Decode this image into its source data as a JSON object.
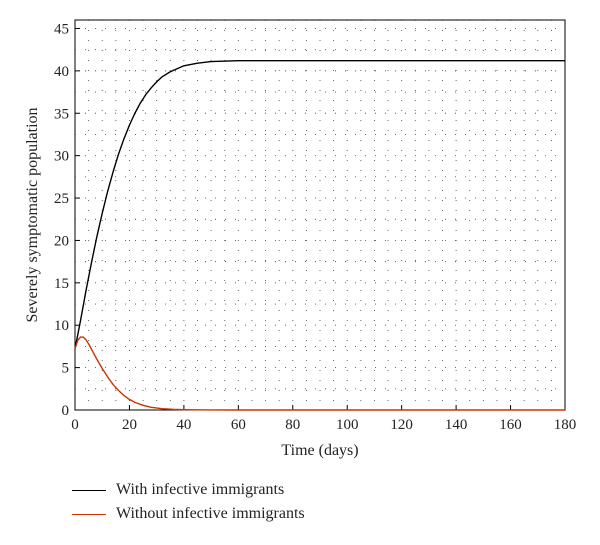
{
  "chart_data": {
    "type": "line",
    "title": "",
    "xlabel": "Time (days)",
    "ylabel": "Severely symptomatic population",
    "xlim": [
      0,
      180
    ],
    "ylim": [
      0,
      46
    ],
    "xticks": [
      0,
      20,
      40,
      60,
      80,
      100,
      120,
      140,
      160,
      180
    ],
    "yticks": [
      0,
      5,
      10,
      15,
      20,
      25,
      30,
      35,
      40,
      45
    ],
    "grid": "dotted",
    "legend_position": "bottom-left, below plot",
    "series": [
      {
        "name": "With infective immigrants",
        "color": "#000000",
        "x": [
          0,
          2,
          4,
          6,
          8,
          10,
          12,
          14,
          16,
          18,
          20,
          22,
          24,
          26,
          28,
          30,
          32,
          35,
          40,
          45,
          50,
          60,
          80,
          100,
          120,
          140,
          160,
          180
        ],
        "y": [
          7.2,
          10.5,
          14.0,
          17.3,
          20.4,
          23.2,
          25.8,
          28.1,
          30.2,
          32.0,
          33.6,
          35.0,
          36.2,
          37.2,
          38.0,
          38.7,
          39.3,
          39.9,
          40.6,
          40.9,
          41.1,
          41.2,
          41.2,
          41.2,
          41.2,
          41.2,
          41.2,
          41.2
        ]
      },
      {
        "name": "Without infective immigrants",
        "color": "#cc3300",
        "x": [
          0,
          1,
          2,
          3,
          4,
          5,
          6,
          8,
          10,
          12,
          14,
          16,
          18,
          20,
          22,
          25,
          28,
          32,
          36,
          40,
          45,
          50,
          60,
          80,
          100,
          120,
          140,
          160,
          180
        ],
        "y": [
          7.2,
          8.2,
          8.6,
          8.6,
          8.3,
          7.8,
          7.2,
          6.0,
          4.9,
          3.9,
          3.0,
          2.3,
          1.7,
          1.25,
          0.9,
          0.55,
          0.32,
          0.16,
          0.08,
          0.04,
          0.02,
          0.01,
          0,
          0,
          0,
          0,
          0,
          0,
          0
        ]
      }
    ]
  }
}
